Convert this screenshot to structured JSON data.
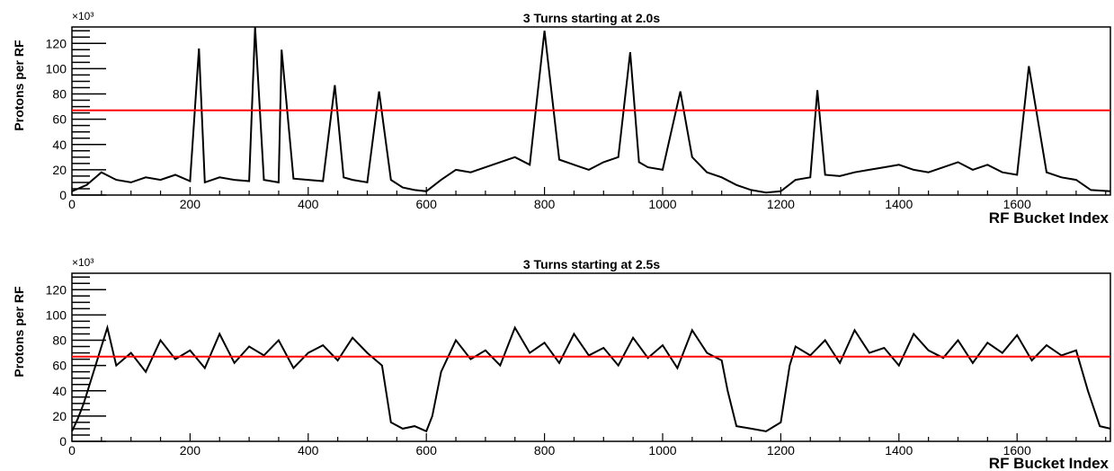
{
  "chart_data": [
    {
      "type": "line",
      "title": "3 Turns starting at 2.0s",
      "xlabel": "RF Bucket Index",
      "ylabel": "Protons per RF",
      "y_multiplier": "×10³",
      "xlim": [
        0,
        1758
      ],
      "ylim": [
        0,
        133
      ],
      "x_ticks": [
        0,
        200,
        400,
        600,
        800,
        1000,
        1200,
        1400,
        1600
      ],
      "y_ticks": [
        0,
        20,
        40,
        60,
        80,
        100,
        120
      ],
      "threshold_value": 67,
      "threshold_color": "#ff0000",
      "line_color": "#000000",
      "series": [
        {
          "x": [
            0,
            25,
            50,
            75,
            100,
            125,
            150,
            175,
            200,
            215,
            225,
            250,
            275,
            300,
            310,
            325,
            350,
            355,
            375,
            400,
            425,
            445,
            460,
            475,
            500,
            520,
            540,
            560,
            580,
            600,
            625,
            650,
            675,
            700,
            725,
            750,
            775,
            800,
            825,
            850,
            875,
            900,
            925,
            945,
            960,
            975,
            1000,
            1030,
            1050,
            1075,
            1100,
            1125,
            1150,
            1175,
            1200,
            1225,
            1250,
            1262,
            1275,
            1300,
            1325,
            1350,
            1375,
            1400,
            1425,
            1450,
            1475,
            1500,
            1525,
            1550,
            1575,
            1600,
            1620,
            1650,
            1675,
            1700,
            1725,
            1758
          ],
          "values": [
            3,
            8,
            18,
            12,
            10,
            14,
            12,
            16,
            11,
            116,
            10,
            14,
            12,
            11,
            133,
            12,
            10,
            115,
            13,
            12,
            11,
            87,
            14,
            12,
            10,
            82,
            12,
            6,
            4,
            3,
            12,
            20,
            18,
            22,
            26,
            30,
            24,
            130,
            28,
            24,
            20,
            26,
            30,
            113,
            26,
            22,
            20,
            82,
            30,
            18,
            14,
            8,
            4,
            2,
            3,
            12,
            14,
            83,
            16,
            15,
            18,
            20,
            22,
            24,
            20,
            18,
            22,
            26,
            20,
            24,
            18,
            16,
            102,
            18,
            14,
            12,
            4,
            3
          ]
        }
      ]
    },
    {
      "type": "line",
      "title": "3 Turns starting at 2.5s",
      "xlabel": "RF Bucket Index",
      "ylabel": "Protons per RF",
      "y_multiplier": "×10³",
      "xlim": [
        0,
        1758
      ],
      "ylim": [
        0,
        133
      ],
      "x_ticks": [
        0,
        200,
        400,
        600,
        800,
        1000,
        1200,
        1400,
        1600
      ],
      "y_ticks": [
        0,
        20,
        40,
        60,
        80,
        100,
        120
      ],
      "threshold_value": 67,
      "threshold_color": "#ff0000",
      "line_color": "#000000",
      "series": [
        {
          "x": [
            0,
            10,
            20,
            30,
            40,
            50,
            60,
            75,
            100,
            125,
            150,
            175,
            200,
            225,
            250,
            275,
            300,
            325,
            350,
            375,
            400,
            425,
            450,
            475,
            500,
            525,
            540,
            560,
            580,
            600,
            610,
            625,
            650,
            675,
            700,
            725,
            750,
            775,
            800,
            825,
            850,
            875,
            900,
            925,
            950,
            975,
            1000,
            1025,
            1050,
            1075,
            1100,
            1110,
            1125,
            1150,
            1175,
            1200,
            1215,
            1225,
            1250,
            1275,
            1300,
            1325,
            1350,
            1375,
            1400,
            1425,
            1450,
            1475,
            1500,
            1525,
            1550,
            1575,
            1600,
            1625,
            1650,
            1675,
            1700,
            1720,
            1740,
            1758
          ],
          "values": [
            8,
            18,
            30,
            45,
            60,
            75,
            90,
            60,
            70,
            55,
            80,
            65,
            72,
            58,
            85,
            62,
            75,
            68,
            80,
            58,
            70,
            76,
            64,
            82,
            70,
            60,
            15,
            10,
            12,
            8,
            20,
            55,
            80,
            65,
            72,
            60,
            90,
            70,
            78,
            62,
            85,
            68,
            74,
            60,
            82,
            66,
            76,
            58,
            88,
            70,
            64,
            40,
            12,
            10,
            8,
            15,
            60,
            75,
            68,
            80,
            62,
            88,
            70,
            74,
            60,
            85,
            72,
            66,
            80,
            62,
            78,
            70,
            84,
            64,
            76,
            68,
            72,
            40,
            12,
            10
          ]
        }
      ]
    }
  ]
}
